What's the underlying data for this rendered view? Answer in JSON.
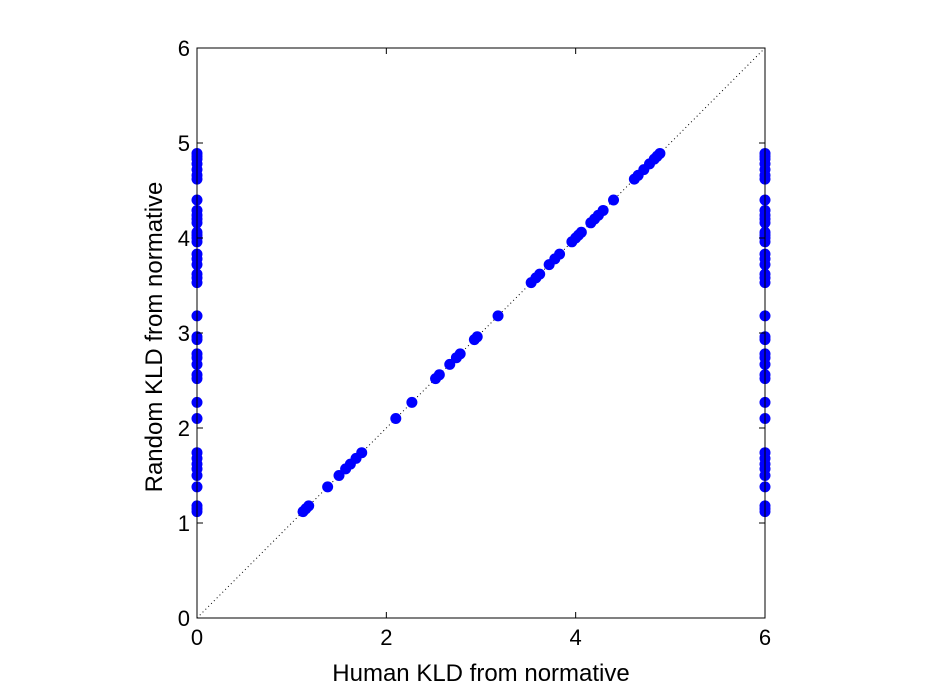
{
  "chart_data": {
    "type": "scatter",
    "xlabel": "Human KLD from normative",
    "ylabel": "Random KLD from normative",
    "xlim": [
      0,
      6
    ],
    "ylim": [
      0,
      6
    ],
    "xticks": [
      0,
      2,
      4,
      6
    ],
    "yticks": [
      0,
      1,
      2,
      3,
      4,
      5,
      6
    ],
    "grid": false,
    "reference_line": {
      "style": "dotted",
      "from": [
        0,
        0
      ],
      "to": [
        6,
        6
      ]
    },
    "marker_color": "#0000ff",
    "series": [
      {
        "x": [
          1.12,
          1.15,
          1.18,
          1.38,
          1.5,
          1.57,
          1.62,
          1.68,
          1.74,
          2.1,
          2.27,
          2.52,
          2.56,
          2.67,
          2.74,
          2.78,
          2.93,
          2.96,
          3.18,
          3.53,
          3.58,
          3.62,
          3.72,
          3.78,
          3.83,
          3.96,
          4.0,
          4.03,
          4.06,
          4.16,
          4.2,
          4.24,
          4.29,
          4.4,
          4.62,
          4.66,
          4.72,
          4.78,
          4.83,
          4.86,
          4.89
        ],
        "y": [
          1.12,
          1.15,
          1.18,
          1.38,
          1.5,
          1.57,
          1.62,
          1.68,
          1.74,
          2.1,
          2.27,
          2.52,
          2.56,
          2.67,
          2.74,
          2.78,
          2.93,
          2.96,
          3.18,
          3.53,
          3.58,
          3.62,
          3.72,
          3.78,
          3.83,
          3.96,
          4.0,
          4.03,
          4.06,
          4.16,
          4.2,
          4.24,
          4.29,
          4.4,
          4.62,
          4.66,
          4.72,
          4.78,
          4.83,
          4.86,
          4.89
        ]
      },
      {
        "x": [
          0,
          0,
          0,
          0,
          0,
          0,
          0,
          0,
          0,
          0,
          0,
          0,
          0,
          0,
          0,
          0,
          0,
          0,
          0,
          0,
          0,
          0,
          0,
          0,
          0,
          0,
          0,
          0,
          0,
          0,
          0,
          0,
          0,
          0,
          0,
          0,
          0,
          0,
          0,
          0,
          0
        ],
        "y": [
          1.12,
          1.15,
          1.18,
          1.38,
          1.5,
          1.57,
          1.62,
          1.68,
          1.74,
          2.1,
          2.27,
          2.52,
          2.56,
          2.67,
          2.74,
          2.78,
          2.93,
          2.96,
          3.18,
          3.53,
          3.58,
          3.62,
          3.72,
          3.78,
          3.83,
          3.96,
          4.0,
          4.03,
          4.06,
          4.16,
          4.2,
          4.24,
          4.29,
          4.4,
          4.62,
          4.66,
          4.72,
          4.78,
          4.83,
          4.86,
          4.89
        ]
      },
      {
        "x": [
          6,
          6,
          6,
          6,
          6,
          6,
          6,
          6,
          6,
          6,
          6,
          6,
          6,
          6,
          6,
          6,
          6,
          6,
          6,
          6,
          6,
          6,
          6,
          6,
          6,
          6,
          6,
          6,
          6,
          6,
          6,
          6,
          6,
          6,
          6,
          6,
          6,
          6,
          6,
          6,
          6
        ],
        "y": [
          1.12,
          1.15,
          1.18,
          1.38,
          1.5,
          1.57,
          1.62,
          1.68,
          1.74,
          2.1,
          2.27,
          2.52,
          2.56,
          2.67,
          2.74,
          2.78,
          2.93,
          2.96,
          3.18,
          3.53,
          3.58,
          3.62,
          3.72,
          3.78,
          3.83,
          3.96,
          4.0,
          4.03,
          4.06,
          4.16,
          4.2,
          4.24,
          4.29,
          4.4,
          4.62,
          4.66,
          4.72,
          4.78,
          4.83,
          4.86,
          4.89
        ]
      }
    ]
  }
}
